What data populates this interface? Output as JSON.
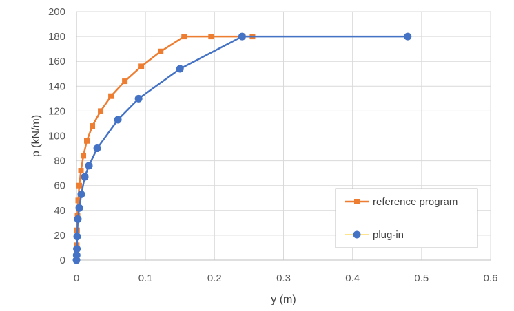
{
  "chart_data": {
    "type": "scatter",
    "title": "",
    "xlabel": "y (m)",
    "ylabel": "p (kN/m)",
    "xlim": [
      0,
      0.6
    ],
    "ylim": [
      0,
      200
    ],
    "x_ticks": [
      "0",
      "0.1",
      "0.2",
      "0.3",
      "0.4",
      "0.5",
      "0.6"
    ],
    "y_ticks": [
      "0",
      "20",
      "40",
      "60",
      "80",
      "100",
      "120",
      "140",
      "160",
      "180",
      "200"
    ],
    "grid": true,
    "legend_position": "bottom-right",
    "series": [
      {
        "name": "reference program",
        "color": "#ED7D31",
        "marker": "square",
        "x": [
          0.0,
          0.0004,
          0.0008,
          0.0015,
          0.0025,
          0.004,
          0.0065,
          0.01,
          0.015,
          0.023,
          0.035,
          0.05,
          0.07,
          0.094,
          0.122,
          0.156,
          0.195,
          0.241,
          0.255
        ],
        "y": [
          0,
          12,
          24,
          36,
          48,
          60,
          72,
          84,
          96,
          108,
          120,
          132,
          144,
          156,
          168,
          180,
          180,
          180,
          180
        ]
      },
      {
        "name": "plug-in",
        "color": "#4472C4",
        "marker": "circle",
        "x": [
          0.0,
          0.0003,
          0.0006,
          0.001,
          0.002,
          0.004,
          0.007,
          0.012,
          0.018,
          0.03,
          0.06,
          0.09,
          0.15,
          0.24,
          0.48
        ],
        "y": [
          0,
          4,
          9,
          19,
          33,
          42,
          53,
          67,
          76,
          90,
          113,
          130,
          154,
          180,
          180
        ]
      }
    ]
  }
}
